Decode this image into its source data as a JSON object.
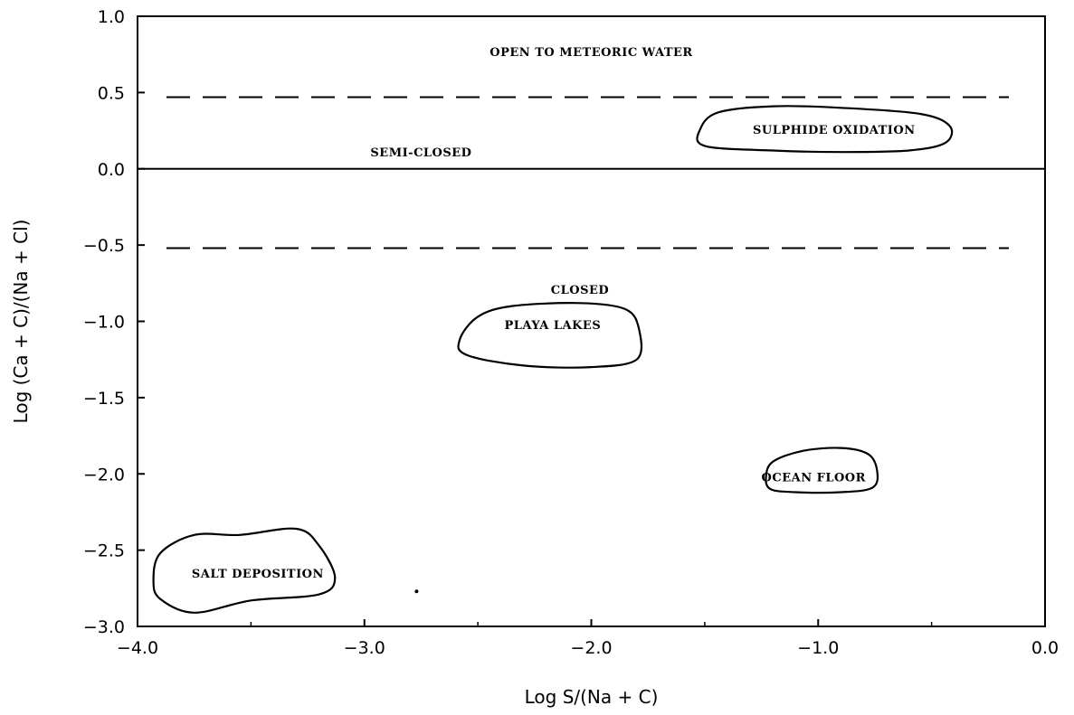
{
  "chart_data": {
    "type": "scatter",
    "title": "",
    "xlabel": "Log S/(Na + C)",
    "ylabel": "Log (Ca + C)/(Na + Cl)",
    "xlim": [
      -4.0,
      0.0
    ],
    "ylim": [
      -3.0,
      1.0
    ],
    "x_ticks": [
      -4.0,
      -3.0,
      -2.0,
      -1.0,
      0.0
    ],
    "x_tick_labels": [
      "−4.0",
      "−3.0",
      "−2.0",
      "−1.0",
      "0.0"
    ],
    "y_ticks": [
      1.0,
      0.5,
      0.0,
      -0.5,
      -1.0,
      -1.5,
      -2.0,
      -2.5,
      -3.0
    ],
    "y_tick_labels": [
      "1.0",
      "0.5",
      "0.0",
      "−0.5",
      "−1.0",
      "−1.5",
      "−2.0",
      "−2.5",
      "−3.0"
    ],
    "grid": false,
    "boundary_lines": [
      {
        "y": 0.47,
        "style": "dashed"
      },
      {
        "y": 0.0,
        "style": "solid"
      },
      {
        "y": -0.52,
        "style": "dashed"
      }
    ],
    "zone_labels": [
      {
        "text": "OPEN TO METEORIC WATER",
        "x": -2.0,
        "y": 0.77
      },
      {
        "text": "SEMI-CLOSED",
        "x": -2.75,
        "y": 0.11
      },
      {
        "text": "CLOSED",
        "x": -2.05,
        "y": -0.79
      }
    ],
    "regions": [
      {
        "name": "SULPHIDE OXIDATION",
        "label_x": -0.93,
        "label_y": 0.26,
        "outline": [
          [
            -1.5,
            0.15
          ],
          [
            -1.52,
            0.26
          ],
          [
            -1.44,
            0.37
          ],
          [
            -1.2,
            0.41
          ],
          [
            -0.9,
            0.4
          ],
          [
            -0.55,
            0.36
          ],
          [
            -0.42,
            0.28
          ],
          [
            -0.44,
            0.17
          ],
          [
            -0.6,
            0.12
          ],
          [
            -0.9,
            0.11
          ],
          [
            -1.2,
            0.12
          ]
        ]
      },
      {
        "name": "PLAYA LAKES",
        "label_x": -2.17,
        "label_y": -1.02,
        "outline": [
          [
            -2.58,
            -1.12
          ],
          [
            -2.5,
            -0.97
          ],
          [
            -2.35,
            -0.9
          ],
          [
            -2.05,
            -0.88
          ],
          [
            -1.85,
            -0.92
          ],
          [
            -1.79,
            -1.05
          ],
          [
            -1.8,
            -1.25
          ],
          [
            -2.0,
            -1.3
          ],
          [
            -2.3,
            -1.29
          ],
          [
            -2.55,
            -1.22
          ]
        ]
      },
      {
        "name": "OCEAN FLOOR",
        "label_x": -1.02,
        "label_y": -2.02,
        "outline": [
          [
            -1.23,
            -2.02
          ],
          [
            -1.2,
            -1.92
          ],
          [
            -1.07,
            -1.85
          ],
          [
            -0.9,
            -1.83
          ],
          [
            -0.78,
            -1.87
          ],
          [
            -0.74,
            -1.98
          ],
          [
            -0.76,
            -2.09
          ],
          [
            -0.9,
            -2.12
          ],
          [
            -1.1,
            -2.12
          ],
          [
            -1.21,
            -2.1
          ]
        ]
      },
      {
        "name": "SALT DEPOSITION",
        "label_x": -3.47,
        "label_y": -2.65,
        "outline": [
          [
            -3.93,
            -2.7
          ],
          [
            -3.9,
            -2.52
          ],
          [
            -3.75,
            -2.4
          ],
          [
            -3.55,
            -2.4
          ],
          [
            -3.3,
            -2.36
          ],
          [
            -3.2,
            -2.47
          ],
          [
            -3.13,
            -2.68
          ],
          [
            -3.2,
            -2.79
          ],
          [
            -3.5,
            -2.83
          ],
          [
            -3.75,
            -2.91
          ],
          [
            -3.9,
            -2.82
          ]
        ]
      }
    ],
    "points": [
      {
        "x": -2.77,
        "y": -2.77
      }
    ]
  }
}
